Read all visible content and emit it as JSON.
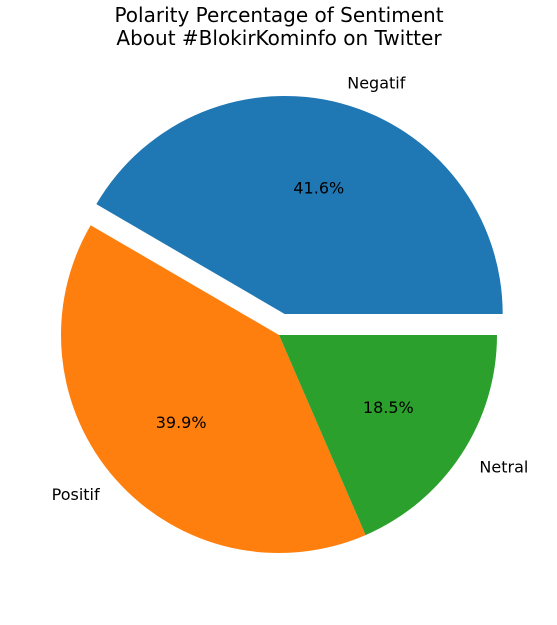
{
  "chart_data": {
    "type": "pie",
    "title": [
      "Polarity Percentage of Sentiment",
      "About #BlokirKominfo on Twitter"
    ],
    "slices": [
      {
        "label": "Negatif",
        "value": 41.6,
        "pct_label": "41.6%",
        "color": "#1f77b4",
        "exploded": true
      },
      {
        "label": "Positif",
        "value": 39.9,
        "pct_label": "39.9%",
        "color": "#ff7f0e",
        "exploded": false
      },
      {
        "label": "Netral",
        "value": 18.5,
        "pct_label": "18.5%",
        "color": "#2ca02c",
        "exploded": false
      }
    ],
    "start_angle_deg": 0,
    "direction": "counterclockwise",
    "legend": "none"
  }
}
